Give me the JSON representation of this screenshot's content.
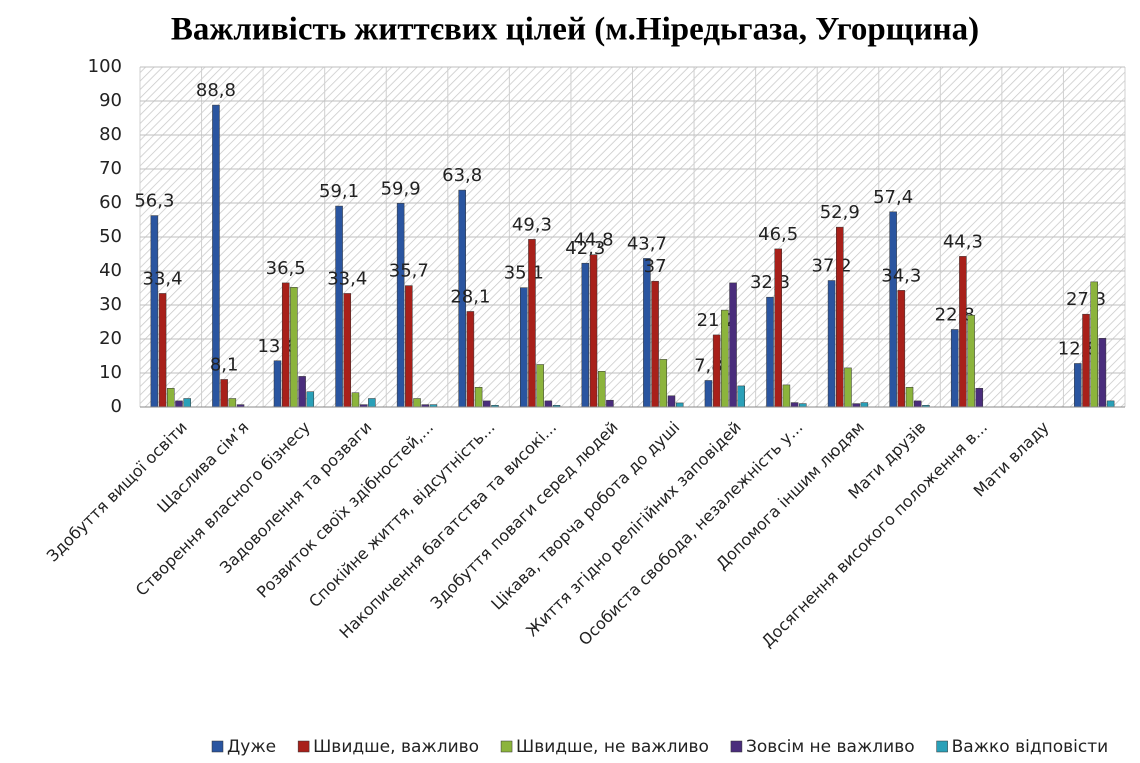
{
  "chart_data": {
    "type": "bar",
    "title": "Важливість життєвих цілей (м.Ніредьгаза, Угорщина)",
    "categories": [
      "Здобуття вищої освіти",
      "Щаслива сім’я",
      "Створення власного бізнесу",
      "Задоволення та розваги",
      "Розвиток своїх здібностей,...",
      "Спокійне життя, відсутність...",
      "Накопичення багатства та високі...",
      "Здобуття поваги серед людей",
      "Цікава, творча робота до душі",
      "Життя згідно релігійних заповідей",
      "Особиста свобода, незалежність у...",
      "Допомога іншим людям",
      "Мати друзів",
      "Досягнення високого положення в...",
      "Мати владу",
      null
    ],
    "series": [
      {
        "name": "Дуже",
        "color": "#2a55a0",
        "values": [
          56.3,
          88.8,
          13.6,
          59.1,
          59.9,
          63.8,
          35.1,
          42.3,
          43.7,
          7.8,
          32.3,
          37.2,
          57.4,
          22.8,
          null,
          12.8
        ],
        "value_labels": [
          "56,3",
          "88,8",
          "13,6",
          "59,1",
          "59,9",
          "63,8",
          "35,1",
          "42,3",
          "43,7",
          "7,8",
          "32,3",
          "37,2",
          "57,4",
          "22,8",
          null,
          "12,8"
        ]
      },
      {
        "name": "Швидше, важливо",
        "color": "#a8201a",
        "values": [
          33.4,
          8.1,
          36.5,
          33.4,
          35.7,
          28.1,
          49.3,
          44.8,
          37,
          21.2,
          46.5,
          52.9,
          34.3,
          44.3,
          null,
          27.3
        ],
        "value_labels": [
          "33,4",
          "8,1",
          "36,5",
          "33,4",
          "35,7",
          "28,1",
          "49,3",
          "44,8",
          "37",
          "21,2",
          "46,5",
          "52,9",
          "34,3",
          "44,3",
          null,
          "27,3"
        ]
      },
      {
        "name": "Швидше, не важливо",
        "color": "#8cb43c",
        "values": [
          5.5,
          2.5,
          35.2,
          4.2,
          2.5,
          5.8,
          12.5,
          10.5,
          14,
          28.5,
          6.5,
          11.5,
          5.8,
          27,
          null,
          36.8
        ]
      },
      {
        "name": "Зовсім не важливо",
        "color": "#4a2d7c",
        "values": [
          1.8,
          0.7,
          9,
          0.7,
          0.7,
          1.8,
          1.8,
          2,
          3.3,
          36.5,
          1.3,
          1,
          1.8,
          5.5,
          null,
          20.2
        ]
      },
      {
        "name": "Важко відповісти",
        "color": "#2aa0b8",
        "values": [
          2.5,
          0,
          4.5,
          2.5,
          0.7,
          0.5,
          0.5,
          0,
          1.2,
          6.2,
          1,
          1.3,
          0.5,
          0,
          null,
          1.8
        ]
      }
    ],
    "ylim": [
      0,
      100
    ],
    "yticks": [
      0,
      10,
      20,
      30,
      40,
      50,
      60,
      70,
      80,
      90,
      100
    ],
    "grid": true,
    "legend": "bottom"
  }
}
